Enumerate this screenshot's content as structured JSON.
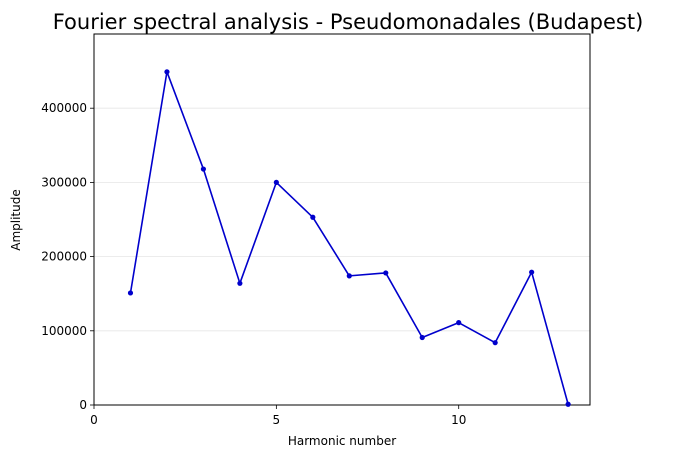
{
  "chart_data": {
    "type": "line",
    "title": "Fourier spectral analysis - Pseudomonadales (Budapest)",
    "xlabel": "Harmonic number",
    "ylabel": "Amplitude",
    "xlim": [
      0,
      13.6
    ],
    "ylim": [
      0,
      500000
    ],
    "xticks": [
      0,
      5,
      10
    ],
    "yticks": [
      0,
      100000,
      200000,
      300000,
      400000
    ],
    "grid": "horizontal",
    "legend": "none",
    "series": [
      {
        "color": "#0000cc",
        "x": [
          1,
          2,
          3,
          4,
          5,
          6,
          7,
          8,
          9,
          10,
          11,
          12,
          13
        ],
        "values": [
          151000,
          449000,
          318000,
          164000,
          300000,
          253000,
          174000,
          178000,
          91000,
          111000,
          84000,
          179000,
          1000
        ]
      }
    ]
  }
}
